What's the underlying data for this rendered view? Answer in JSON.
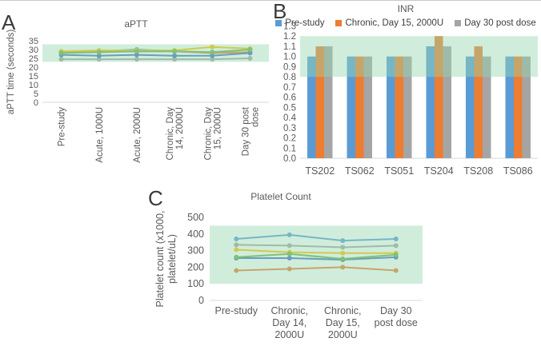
{
  "figure": {
    "panels": {
      "a": "A",
      "b": "B",
      "c": "C"
    }
  },
  "chart_data": [
    {
      "id": "aptt",
      "panel_label": "A",
      "type": "line",
      "title": "aPTT",
      "ylabel": "aPTT time (seconds)",
      "categories": [
        "Pre-study",
        "Acute, 1000U",
        "Acute, 2000U",
        "Chronic, Day 14, 2000U",
        "Chronic, Day 15, 2000U",
        "Day 30 post dose"
      ],
      "cat_lines": [
        [
          "Pre-study"
        ],
        [
          "Acute, 1000U"
        ],
        [
          "Acute, 2000U"
        ],
        [
          "Chronic, Day",
          "14, 2000U"
        ],
        [
          "Chronic, Day",
          "15, 2000U"
        ],
        [
          "Day 30 post",
          "dose"
        ]
      ],
      "ylim": [
        0,
        35
      ],
      "ytick_step": 5,
      "ytick_decimals": 0,
      "grid": false,
      "band": [
        23,
        33
      ],
      "band_color": "#96D7B1",
      "series": [
        {
          "name": "series-1",
          "color": "#5B9BD5",
          "values": [
            28.5,
            29,
            30,
            29,
            28,
            28.5
          ]
        },
        {
          "name": "series-2",
          "color": "#ED7D31",
          "values": [
            28.5,
            29,
            29,
            29,
            28,
            28.5
          ]
        },
        {
          "name": "series-3",
          "color": "#A5A5A5",
          "values": [
            24.5,
            24.5,
            24.5,
            24.5,
            24.5,
            25
          ]
        },
        {
          "name": "series-4",
          "color": "#FFC000",
          "values": [
            29,
            29.5,
            29.5,
            29.5,
            31.5,
            30.5
          ]
        },
        {
          "name": "series-5",
          "color": "#4472C4",
          "values": [
            27,
            26.5,
            27,
            26.5,
            26.5,
            28
          ]
        },
        {
          "name": "series-6",
          "color": "#70AD47",
          "values": [
            28,
            28.5,
            29,
            29,
            28.5,
            30
          ]
        }
      ]
    },
    {
      "id": "inr",
      "panel_label": "B",
      "type": "bar",
      "title": "INR",
      "categories": [
        "TS202",
        "TS062",
        "TS051",
        "TS204",
        "TS208",
        "TS086"
      ],
      "cat_lines": [
        [
          "TS202"
        ],
        [
          "TS062"
        ],
        [
          "TS051"
        ],
        [
          "TS204"
        ],
        [
          "TS208"
        ],
        [
          "TS086"
        ]
      ],
      "ylim": [
        0,
        1.3
      ],
      "ytick_step": 0.1,
      "ytick_decimals": 1,
      "grid": false,
      "band": [
        0.8,
        1.2
      ],
      "band_color": "#96D7B1",
      "legend_position": "top",
      "series": [
        {
          "name": "Pre-study",
          "color": "#5B9BD5",
          "values": [
            1.0,
            1.0,
            1.0,
            1.1,
            1.0,
            1.0
          ]
        },
        {
          "name": "Chronic, Day 15, 2000U",
          "color": "#ED7D31",
          "values": [
            1.1,
            1.0,
            1.0,
            1.2,
            1.1,
            1.0
          ]
        },
        {
          "name": "Day 30 post dose",
          "color": "#A5A5A5",
          "values": [
            1.1,
            1.0,
            1.0,
            1.1,
            1.0,
            1.0
          ]
        }
      ]
    },
    {
      "id": "platelet",
      "panel_label": "C",
      "type": "line",
      "title": "Platelet Count",
      "ylabel": "Platelet count (x1000, platelet/uL)",
      "ylabel_lines": [
        "Platelet count (x1000,",
        "platelet/uL)"
      ],
      "categories": [
        "Pre-study",
        "Chronic, Day 14, 2000U",
        "Chronic, Day 15, 2000U",
        "Day 30 post dose"
      ],
      "cat_lines": [
        [
          "Pre-study"
        ],
        [
          "Chronic,",
          "Day 14,",
          "2000U"
        ],
        [
          "Chronic,",
          "Day 15,",
          "2000U"
        ],
        [
          "Day 30",
          "post dose"
        ]
      ],
      "ylim": [
        0,
        500
      ],
      "ytick_step": 100,
      "ytick_decimals": 0,
      "grid": false,
      "band": [
        100,
        450
      ],
      "band_color": "#96D7B1",
      "series": [
        {
          "name": "series-1",
          "color": "#5B9BD5",
          "values": [
            370,
            395,
            360,
            370
          ]
        },
        {
          "name": "series-2",
          "color": "#ED7D31",
          "values": [
            180,
            190,
            200,
            180
          ]
        },
        {
          "name": "series-3",
          "color": "#A5A5A5",
          "values": [
            335,
            330,
            320,
            330
          ]
        },
        {
          "name": "series-4",
          "color": "#FFC000",
          "values": [
            305,
            290,
            285,
            285
          ]
        },
        {
          "name": "series-5",
          "color": "#4472C4",
          "values": [
            255,
            255,
            245,
            260
          ]
        },
        {
          "name": "series-6",
          "color": "#70AD47",
          "values": [
            260,
            280,
            250,
            275
          ]
        }
      ]
    }
  ]
}
